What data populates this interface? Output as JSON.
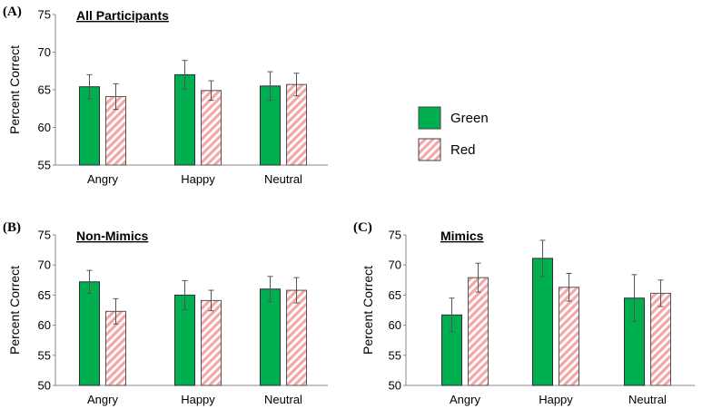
{
  "legend": {
    "items": [
      {
        "name": "Green",
        "color": "#00B050",
        "pattern": "solid"
      },
      {
        "name": "Red",
        "color": "#F4A7A7",
        "pattern": "diagonal-stripes"
      }
    ]
  },
  "chart_data": [
    {
      "panel": "(A)",
      "type": "bar",
      "title": "All Participants",
      "ylabel": "Percent Correct",
      "ylim": [
        55,
        75
      ],
      "yticks": [
        55,
        60,
        65,
        70,
        75
      ],
      "categories": [
        "Angry",
        "Happy",
        "Neutral"
      ],
      "series": [
        {
          "name": "Green",
          "values": [
            65.4,
            67.0,
            65.5
          ],
          "errors": [
            1.6,
            1.9,
            1.9
          ]
        },
        {
          "name": "Red",
          "values": [
            64.1,
            64.9,
            65.7
          ],
          "errors": [
            1.7,
            1.3,
            1.5
          ]
        }
      ]
    },
    {
      "panel": "(B)",
      "type": "bar",
      "title": "Non-Mimics",
      "ylabel": "Percent Correct",
      "ylim": [
        50,
        75
      ],
      "yticks": [
        50,
        55,
        60,
        65,
        70,
        75
      ],
      "categories": [
        "Angry",
        "Happy",
        "Neutral"
      ],
      "series": [
        {
          "name": "Green",
          "values": [
            67.2,
            65.0,
            66.0
          ],
          "errors": [
            1.9,
            2.4,
            2.1
          ]
        },
        {
          "name": "Red",
          "values": [
            62.3,
            64.1,
            65.8
          ],
          "errors": [
            2.1,
            1.7,
            2.1
          ]
        }
      ]
    },
    {
      "panel": "(C)",
      "type": "bar",
      "title": "Mimics",
      "ylabel": "Percent Correct",
      "ylim": [
        50,
        75
      ],
      "yticks": [
        50,
        55,
        60,
        65,
        70,
        75
      ],
      "categories": [
        "Angry",
        "Happy",
        "Neutral"
      ],
      "series": [
        {
          "name": "Green",
          "values": [
            61.7,
            71.1,
            64.5
          ],
          "errors": [
            2.8,
            3.0,
            3.9
          ]
        },
        {
          "name": "Red",
          "values": [
            67.9,
            66.3,
            65.3
          ],
          "errors": [
            2.4,
            2.3,
            2.2
          ]
        }
      ]
    }
  ]
}
